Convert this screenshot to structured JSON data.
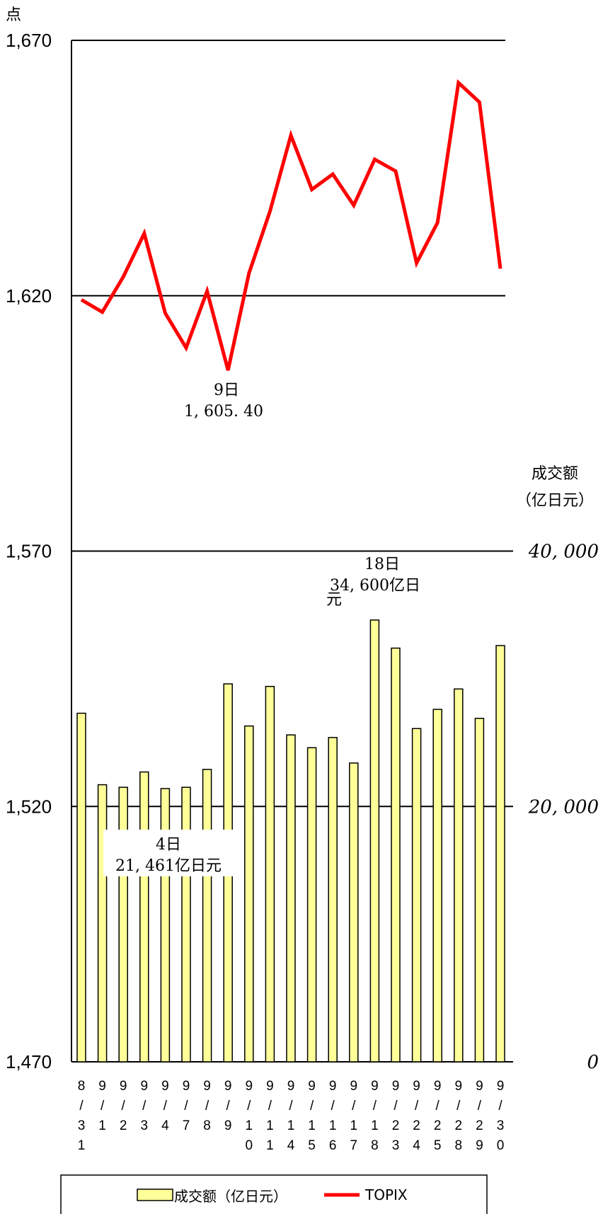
{
  "chart_data": {
    "type": "bar+line",
    "left_axis": {
      "unit_label": "点",
      "ylim": [
        1470,
        1670
      ],
      "ticks": [
        "1,670",
        "1,620",
        "1,570",
        "1,520",
        "1,470"
      ]
    },
    "right_axis": {
      "unit_label_line1": "成交额",
      "unit_label_line2": "（亿日元）",
      "ylim": [
        0,
        40000
      ],
      "ticks": [
        "40, 000",
        "20, 000",
        "0"
      ]
    },
    "categories": [
      [
        "8",
        "/",
        "3",
        "1"
      ],
      [
        "9",
        "/",
        "1"
      ],
      [
        "9",
        "/",
        "2"
      ],
      [
        "9",
        "/",
        "3"
      ],
      [
        "9",
        "/",
        "4"
      ],
      [
        "9",
        "/",
        "7"
      ],
      [
        "9",
        "/",
        "8"
      ],
      [
        "9",
        "/",
        "9"
      ],
      [
        "9",
        "/",
        "1",
        "0"
      ],
      [
        "9",
        "/",
        "1",
        "1"
      ],
      [
        "9",
        "/",
        "1",
        "4"
      ],
      [
        "9",
        "/",
        "1",
        "5"
      ],
      [
        "9",
        "/",
        "1",
        "6"
      ],
      [
        "9",
        "/",
        "1",
        "7"
      ],
      [
        "9",
        "/",
        "1",
        "8"
      ],
      [
        "9",
        "/",
        "2",
        "3"
      ],
      [
        "9",
        "/",
        "2",
        "4"
      ],
      [
        "9",
        "/",
        "2",
        "5"
      ],
      [
        "9",
        "/",
        "2",
        "8"
      ],
      [
        "9",
        "/",
        "2",
        "9"
      ],
      [
        "9",
        "/",
        "3",
        "0"
      ]
    ],
    "series": [
      {
        "name": "成交额（亿日元）",
        "kind": "bar",
        "axis": "right",
        "color": "#ffff99",
        "values": [
          27300,
          21700,
          21500,
          22700,
          21400,
          21500,
          22900,
          29600,
          26300,
          29400,
          25600,
          24600,
          25400,
          23400,
          34600,
          32400,
          26100,
          27600,
          29200,
          26900,
          32600
        ]
      },
      {
        "name": "TOPIX",
        "kind": "line",
        "axis": "left",
        "color": "#ff0000",
        "values": [
          1619.2,
          1616.8,
          1623.7,
          1632.2,
          1616.6,
          1609.8,
          1620.9,
          1605.4,
          1624.4,
          1636.5,
          1651.4,
          1640.8,
          1643.8,
          1637.7,
          1646.7,
          1644.4,
          1626.4,
          1634.3,
          1661.7,
          1657.9,
          1625.3
        ]
      }
    ],
    "annotations": [
      {
        "line1": "9日",
        "line2": "1, 605. 40"
      },
      {
        "line1": "4日",
        "line2": "21, 461亿日元"
      },
      {
        "line1": "18日",
        "line2": "34, 600亿日",
        "line3": "元"
      }
    ],
    "legend": {
      "bar_label": "成交额（亿日元）",
      "line_label": "TOPIX",
      "position": "bottom"
    }
  }
}
